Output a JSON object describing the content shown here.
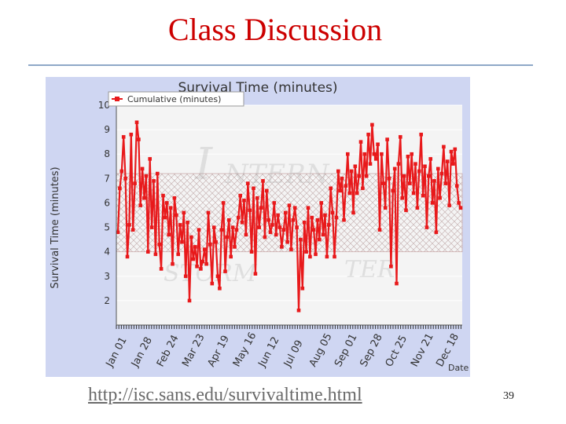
{
  "slide": {
    "title": "Class Discussion",
    "footer_link": "http://isc.sans.edu/survivaltime.html",
    "page_number": "39"
  },
  "chart_data": {
    "type": "line",
    "title": "Survival Time (minutes)",
    "ylabel": "Survival Time (minutes)",
    "xlabel": "Date",
    "ylim": [
      1,
      10
    ],
    "yticks": [
      2,
      3,
      4,
      5,
      6,
      7,
      8,
      9,
      10
    ],
    "ytick_labels": [
      "2",
      "3",
      "4",
      "5",
      "6",
      "7",
      "8",
      "9",
      "10"
    ],
    "x_tick_labels": [
      "Jan 01",
      "Jan 28",
      "Feb 24",
      "Mar 23",
      "Apr 19",
      "May 16",
      "Jun 12",
      "Jul 09",
      "Aug 05",
      "Sep 01",
      "Sep 28",
      "Oct 25",
      "Nov 21",
      "Dec 18"
    ],
    "legend": {
      "position": "top-left",
      "label": "Cumulative (minutes)"
    },
    "band": {
      "low": 4.0,
      "high": 7.2
    },
    "grid": true,
    "colors": {
      "series": "#e8191b",
      "plot_bg": "#f4f4f4",
      "outer_bg": "#cfd6f2"
    },
    "series": [
      {
        "name": "Cumulative (minutes)",
        "values": [
          4.8,
          6.6,
          7.3,
          8.7,
          7.0,
          3.8,
          5.1,
          8.8,
          4.9,
          6.8,
          9.3,
          8.6,
          5.9,
          7.4,
          6.2,
          7.1,
          4.0,
          7.8,
          5.0,
          6.9,
          3.9,
          7.2,
          4.3,
          3.3,
          6.3,
          5.4,
          6.0,
          4.7,
          5.8,
          3.5,
          6.2,
          5.5,
          3.9,
          5.1,
          4.4,
          5.6,
          3.0,
          5.2,
          2.0,
          4.6,
          3.7,
          4.2,
          3.4,
          4.9,
          3.3,
          3.6,
          4.1,
          3.5,
          5.6,
          4.3,
          2.7,
          5.0,
          4.4,
          3.0,
          2.5,
          4.9,
          6.0,
          3.2,
          4.6,
          5.3,
          3.8,
          5.0,
          4.2,
          4.9,
          5.4,
          6.3,
          5.2,
          6.1,
          4.7,
          6.8,
          5.7,
          4.0,
          6.6,
          3.1,
          6.2,
          5.0,
          5.8,
          6.9,
          4.6,
          6.5,
          5.3,
          4.8,
          5.1,
          6.0,
          4.7,
          5.5,
          5.0,
          4.2,
          4.9,
          5.6,
          4.4,
          5.9,
          4.1,
          5.3,
          5.8,
          5.0,
          1.6,
          4.5,
          2.5,
          5.2,
          4.0,
          5.8,
          3.8,
          5.4,
          4.9,
          3.9,
          5.3,
          4.5,
          6.0,
          4.7,
          5.5,
          3.8,
          5.1,
          6.6,
          5.6,
          3.8,
          5.4,
          7.3,
          6.5,
          7.0,
          5.3,
          6.7,
          8.0,
          6.4,
          7.3,
          5.6,
          7.5,
          6.4,
          7.1,
          8.5,
          6.6,
          8.0,
          7.1,
          8.8,
          7.6,
          9.2,
          8.0,
          7.8,
          8.4,
          4.9,
          8.0,
          6.8,
          5.8,
          8.6,
          7.0,
          3.4,
          6.5,
          7.4,
          2.7,
          7.6,
          8.7,
          6.2,
          7.1,
          5.7,
          7.9,
          6.8,
          8.0,
          6.4,
          7.6,
          5.8,
          7.3,
          8.8,
          6.3,
          7.5,
          5.0,
          7.1,
          7.8,
          6.0,
          6.9,
          4.8,
          7.4,
          6.2,
          7.2,
          8.3,
          6.8,
          7.7,
          5.9,
          8.1,
          7.6,
          8.2,
          6.7,
          6.0,
          5.8
        ]
      }
    ]
  }
}
